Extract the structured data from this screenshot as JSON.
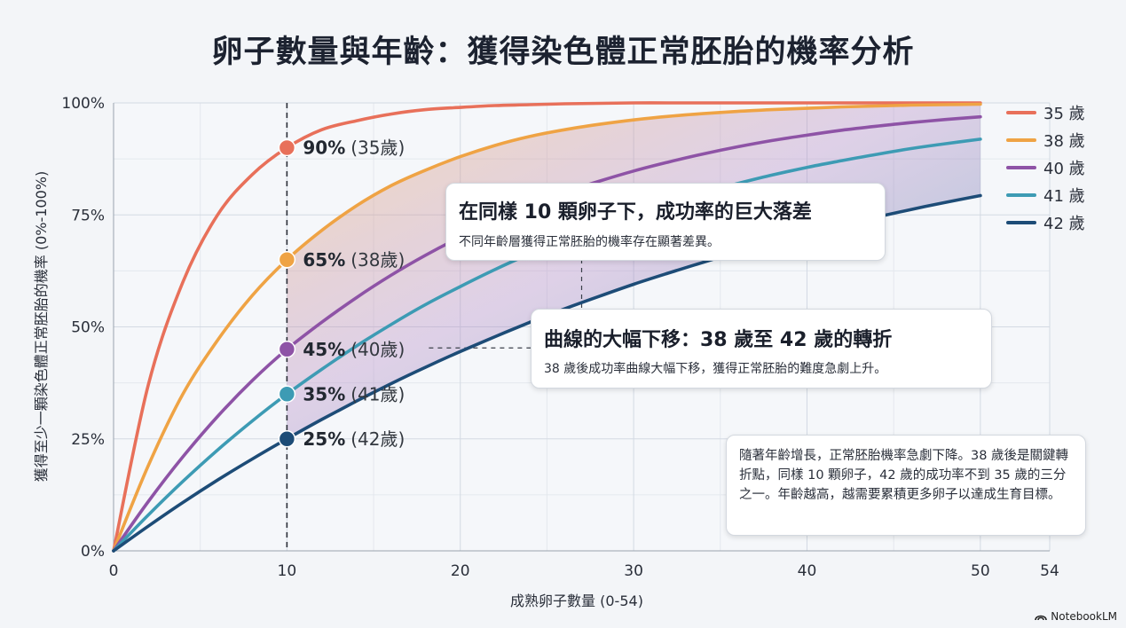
{
  "page": {
    "title": "卵子數量與年齡：獲得染色體正常胚胎的機率分析",
    "brand": "NotebookLM"
  },
  "chart_data": {
    "type": "line",
    "title": "卵子數量與年齡：獲得染色體正常胚胎的機率分析",
    "xlabel": "成熟卵子數量 (0-54)",
    "ylabel": "獲得至少一顆染色體正常胚胎的機率 (0%-100%)",
    "xlim": [
      0,
      54
    ],
    "ylim": [
      0,
      100
    ],
    "x_ticks": [
      0,
      10,
      20,
      30,
      40,
      50,
      54
    ],
    "x_tick_labels": [
      "0",
      "10",
      "20",
      "30",
      "40",
      "50",
      "54"
    ],
    "y_ticks": [
      0,
      25,
      50,
      75,
      100
    ],
    "y_tick_labels": [
      "0%",
      "25%",
      "50%",
      "75%",
      "100%"
    ],
    "grid": true,
    "legend_position": "top-right",
    "x": [
      0,
      2,
      4,
      6,
      8,
      10,
      12,
      14,
      16,
      18,
      20,
      22,
      24,
      26,
      28,
      30,
      32,
      34,
      36,
      38,
      40,
      42,
      44,
      46,
      48,
      50
    ],
    "series": [
      {
        "name": "35 歲",
        "color": "#e8705a",
        "values": [
          0,
          37,
          60,
          75,
          84,
          90,
          94,
          96,
          97.5,
          98.5,
          99,
          99.4,
          99.6,
          99.8,
          99.9,
          100,
          100,
          100,
          100,
          100,
          100,
          100,
          100,
          100,
          100,
          100
        ]
      },
      {
        "name": "38 歲",
        "color": "#efa344",
        "values": [
          0,
          19,
          35,
          47,
          57,
          65,
          71.5,
          77,
          81.5,
          85,
          88,
          90.5,
          92.5,
          94,
          95.2,
          96.2,
          97,
          97.6,
          98.1,
          98.5,
          98.8,
          99.1,
          99.3,
          99.5,
          99.6,
          99.7
        ]
      },
      {
        "name": "40 歲",
        "color": "#8e53a6",
        "values": [
          0,
          11,
          21,
          30,
          38,
          45,
          51,
          56.5,
          61.5,
          66,
          70,
          73.5,
          77,
          80,
          82.5,
          84.8,
          86.8,
          88.6,
          90.2,
          91.6,
          92.8,
          93.9,
          94.8,
          95.6,
          96.3,
          96.9
        ]
      },
      {
        "name": "41 歲",
        "color": "#3d9bb4",
        "values": [
          0,
          8,
          15.5,
          22.5,
          29,
          35,
          40.5,
          45.7,
          50.5,
          55,
          59,
          62.8,
          66.3,
          69.5,
          72.5,
          75.2,
          77.7,
          80,
          82,
          83.9,
          85.6,
          87.1,
          88.5,
          89.8,
          90.9,
          91.9
        ]
      },
      {
        "name": "42 歲",
        "color": "#1d4c77",
        "values": [
          0,
          5.5,
          10.8,
          15.8,
          20.5,
          25,
          29.3,
          33.4,
          37.3,
          41,
          44.5,
          47.8,
          51,
          54,
          56.8,
          59.5,
          62,
          64.4,
          66.7,
          68.8,
          70.8,
          72.7,
          74.5,
          76.2,
          77.8,
          79.3
        ]
      }
    ],
    "annotations": [
      {
        "x": 10,
        "y": 90,
        "value": "90%",
        "age": "(35歲)"
      },
      {
        "x": 10,
        "y": 65,
        "value": "65%",
        "age": "(38歲)"
      },
      {
        "x": 10,
        "y": 45,
        "value": "45%",
        "age": "(40歲)"
      },
      {
        "x": 10,
        "y": 35,
        "value": "35%",
        "age": "(41歲)"
      },
      {
        "x": 10,
        "y": 25,
        "value": "25%",
        "age": "(42歲)"
      }
    ],
    "reference_line_x": 10
  },
  "callouts": {
    "gap": {
      "heading": "在同樣 10 顆卵子下，成功率的巨大落差",
      "text": "不同年齡層獲得正常胚胎的機率存在顯著差異。"
    },
    "shift": {
      "heading": "曲線的大幅下移：38 歲至 42 歲的轉折",
      "text": "38 歲後成功率曲線大幅下移，獲得正常胚胎的難度急劇上升。"
    },
    "summary": {
      "text": "隨著年齡增長，正常胚胎機率急劇下降。38 歲後是關鍵轉折點，同樣 10 顆卵子，42 歲的成功率不到 35 歲的三分之一。年齡越高，越需要累積更多卵子以達成生育目標。"
    }
  }
}
